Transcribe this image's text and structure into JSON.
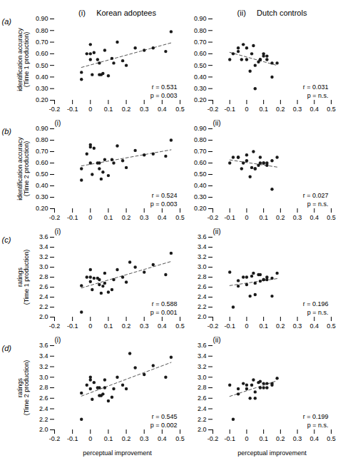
{
  "chart_data": [
    {
      "type": "scatter",
      "title": "(i)     Korean adoptees",
      "row_label": "(a)",
      "ylabel": "identification accuracy\n(Time 1 production)",
      "x": [
        -0.05,
        0.02,
        0.0,
        0.05,
        0.08,
        0.0,
        0.05,
        0.1,
        0.12,
        0.0,
        -0.02,
        0.04,
        0.06,
        0.15,
        0.2,
        0.25,
        0.3,
        0.35,
        0.42,
        0.45,
        -0.05,
        0.01,
        0.07,
        0.13,
        0.18
      ],
      "values": [
        0.44,
        0.61,
        0.6,
        0.42,
        0.63,
        0.55,
        0.52,
        0.41,
        0.56,
        0.68,
        0.6,
        0.55,
        0.42,
        0.7,
        0.5,
        0.65,
        0.63,
        0.65,
        0.62,
        0.79,
        0.38,
        0.42,
        0.43,
        0.52,
        0.54
      ],
      "color": "#1a1a1a",
      "marker": "circle",
      "trend_line": {
        "type": "regression",
        "color": "#555555",
        "line_style": "dashed"
      },
      "annotations": [
        "r = 0.531",
        "p = 0.003"
      ],
      "xlim": [
        -0.2,
        0.5
      ],
      "xticks": [
        -0.2,
        -0.1,
        0,
        0.1,
        0.2,
        0.3,
        0.4,
        0.5
      ],
      "ylim": [
        0.2,
        0.9
      ],
      "yticks": [
        {
          "value": 0.2,
          "label": "0.20"
        },
        {
          "value": 0.3,
          "label": "0.30"
        },
        {
          "value": 0.4,
          "label": "0.40"
        },
        {
          "value": 0.5,
          "label": "0.50"
        },
        {
          "value": 0.6,
          "label": "0.60"
        },
        {
          "value": 0.7,
          "label": "0.70"
        },
        {
          "value": 0.8,
          "label": "0.80"
        },
        {
          "value": 0.9,
          "label": "0.90"
        }
      ],
      "grid": false
    },
    {
      "type": "scatter",
      "title": "(ii)     Dutch controls",
      "x": [
        -0.1,
        -0.05,
        -0.02,
        0.0,
        0.03,
        0.05,
        0.08,
        0.1,
        0.12,
        0.15,
        0.0,
        -0.05,
        0.02,
        0.08,
        0.15,
        0.1,
        0.05,
        0.18,
        0.12,
        -0.08,
        0.07,
        0.04,
        -0.03
      ],
      "values": [
        0.55,
        0.65,
        0.68,
        0.55,
        0.6,
        0.5,
        0.55,
        0.6,
        0.58,
        0.52,
        0.65,
        0.62,
        0.45,
        0.55,
        0.4,
        0.58,
        0.3,
        0.52,
        0.55,
        0.6,
        0.53,
        0.67,
        0.55
      ],
      "color": "#1a1a1a",
      "marker": "circle",
      "trend_line": {
        "type": "regression",
        "color": "#555555",
        "line_style": "dashed"
      },
      "annotations": [
        "r = 0.031",
        "p = n.s."
      ],
      "xlim": [
        -0.2,
        0.5
      ],
      "xticks": [
        -0.2,
        -0.1,
        0,
        0.1,
        0.2,
        0.3,
        0.4,
        0.5
      ],
      "ylim": [
        0.2,
        0.9
      ],
      "yticks": [
        {
          "value": 0.2,
          "label": "0.20"
        },
        {
          "value": 0.3,
          "label": "0.30"
        },
        {
          "value": 0.4,
          "label": "0.40"
        },
        {
          "value": 0.5,
          "label": "0.50"
        },
        {
          "value": 0.6,
          "label": "0.60"
        },
        {
          "value": 0.7,
          "label": "0.70"
        },
        {
          "value": 0.8,
          "label": "0.80"
        },
        {
          "value": 0.9,
          "label": "0.90"
        }
      ],
      "grid": false
    },
    {
      "type": "scatter",
      "title": "(i)",
      "row_label": "(b)",
      "ylabel": "identification accuracy\n(Time 2 production)",
      "x": [
        -0.05,
        0.02,
        0.0,
        0.05,
        0.08,
        0.0,
        0.05,
        0.1,
        0.12,
        0.0,
        -0.02,
        0.04,
        0.06,
        0.15,
        0.2,
        0.25,
        0.3,
        0.35,
        0.42,
        0.45,
        -0.05,
        0.01,
        0.07,
        0.13,
        0.18
      ],
      "values": [
        0.55,
        0.73,
        0.74,
        0.55,
        0.63,
        0.6,
        0.6,
        0.49,
        0.63,
        0.76,
        0.68,
        0.6,
        0.46,
        0.75,
        0.56,
        0.71,
        0.67,
        0.68,
        0.66,
        0.8,
        0.45,
        0.5,
        0.52,
        0.6,
        0.62
      ],
      "color": "#1a1a1a",
      "marker": "circle",
      "trend_line": {
        "type": "regression",
        "color": "#555555",
        "line_style": "dashed"
      },
      "annotations": [
        "r = 0.524",
        "p = 0.003"
      ],
      "xlim": [
        -0.2,
        0.5
      ],
      "xticks": [
        -0.2,
        -0.1,
        0,
        0.1,
        0.2,
        0.3,
        0.4,
        0.5
      ],
      "ylim": [
        0.2,
        0.9
      ],
      "yticks": [
        {
          "value": 0.2,
          "label": "0.20"
        },
        {
          "value": 0.3,
          "label": "0.30"
        },
        {
          "value": 0.4,
          "label": "0.40"
        },
        {
          "value": 0.5,
          "label": "0.50"
        },
        {
          "value": 0.6,
          "label": "0.60"
        },
        {
          "value": 0.7,
          "label": "0.70"
        },
        {
          "value": 0.8,
          "label": "0.80"
        },
        {
          "value": 0.9,
          "label": "0.90"
        }
      ],
      "grid": false
    },
    {
      "type": "scatter",
      "title": "(ii)",
      "x": [
        -0.1,
        -0.05,
        -0.02,
        0.0,
        0.03,
        0.05,
        0.08,
        0.1,
        0.12,
        0.15,
        0.0,
        -0.05,
        0.02,
        0.08,
        0.15,
        0.1,
        0.05,
        0.18,
        0.12,
        -0.08,
        0.07,
        0.04,
        -0.03
      ],
      "values": [
        0.6,
        0.65,
        0.6,
        0.62,
        0.56,
        0.55,
        0.6,
        0.6,
        0.6,
        0.62,
        0.67,
        0.65,
        0.48,
        0.65,
        0.37,
        0.6,
        0.55,
        0.65,
        0.58,
        0.65,
        0.58,
        0.7,
        0.55
      ],
      "color": "#1a1a1a",
      "marker": "circle",
      "trend_line": {
        "type": "regression",
        "color": "#555555",
        "line_style": "dashed"
      },
      "annotations": [
        "r = 0.027",
        "p = n.s."
      ],
      "xlim": [
        -0.2,
        0.5
      ],
      "xticks": [
        -0.2,
        -0.1,
        0,
        0.1,
        0.2,
        0.3,
        0.4,
        0.5
      ],
      "ylim": [
        0.2,
        0.9
      ],
      "yticks": [
        {
          "value": 0.2,
          "label": "0.20"
        },
        {
          "value": 0.3,
          "label": "0.30"
        },
        {
          "value": 0.4,
          "label": "0.40"
        },
        {
          "value": 0.5,
          "label": "0.50"
        },
        {
          "value": 0.6,
          "label": "0.60"
        },
        {
          "value": 0.7,
          "label": "0.70"
        },
        {
          "value": 0.8,
          "label": "0.80"
        },
        {
          "value": 0.9,
          "label": "0.90"
        }
      ],
      "grid": false
    },
    {
      "type": "scatter",
      "title": "(i)",
      "row_label": "(c)",
      "ylabel": "ratings\n(Time 1 production)",
      "x": [
        -0.05,
        0.02,
        0.0,
        0.05,
        0.08,
        0.0,
        0.05,
        0.1,
        0.12,
        0.0,
        -0.02,
        0.04,
        0.06,
        0.15,
        0.2,
        0.25,
        0.3,
        0.35,
        0.42,
        0.45,
        -0.05,
        0.01,
        0.07,
        0.13,
        0.18,
        0.22,
        0.08
      ],
      "values": [
        2.63,
        2.78,
        2.8,
        2.65,
        2.88,
        2.71,
        2.75,
        2.5,
        2.55,
        2.95,
        2.8,
        2.78,
        2.48,
        2.95,
        2.7,
        3.0,
        2.9,
        3.05,
        2.85,
        3.28,
        2.1,
        2.55,
        2.62,
        2.75,
        2.8,
        3.1,
        2.68
      ],
      "color": "#1a1a1a",
      "marker": "circle",
      "trend_line": {
        "type": "regression",
        "color": "#555555",
        "line_style": "dashed"
      },
      "annotations": [
        "r = 0.588",
        "p = 0.001"
      ],
      "xlim": [
        -0.2,
        0.5
      ],
      "xticks": [
        -0.2,
        -0.1,
        0,
        0.1,
        0.2,
        0.3,
        0.4,
        0.5
      ],
      "ylim": [
        2.0,
        3.6
      ],
      "yticks": [
        {
          "value": 2.0,
          "label": "2.0"
        },
        2.2,
        2.4,
        2.6,
        2.8,
        {
          "value": 3.0,
          "label": "3.0"
        },
        3.2,
        3.4,
        3.6
      ],
      "grid": false
    },
    {
      "type": "scatter",
      "title": "(ii)",
      "x": [
        -0.1,
        -0.05,
        -0.02,
        0.0,
        0.03,
        0.05,
        0.08,
        0.1,
        0.12,
        0.15,
        0.0,
        -0.05,
        0.02,
        0.08,
        0.15,
        0.1,
        0.05,
        0.18,
        0.12,
        -0.08,
        0.07,
        0.04
      ],
      "values": [
        2.9,
        2.73,
        2.8,
        2.65,
        2.82,
        2.68,
        2.72,
        2.75,
        2.75,
        2.78,
        2.8,
        2.62,
        2.42,
        2.85,
        2.42,
        2.75,
        2.45,
        2.88,
        2.8,
        2.2,
        2.85,
        2.88
      ],
      "color": "#1a1a1a",
      "marker": "circle",
      "trend_line": {
        "type": "regression",
        "color": "#555555",
        "line_style": "dashed"
      },
      "annotations": [
        "r = 0.196",
        "p = n.s."
      ],
      "xlim": [
        -0.2,
        0.5
      ],
      "xticks": [
        -0.2,
        -0.1,
        0,
        0.1,
        0.2,
        0.3,
        0.4,
        0.5
      ],
      "ylim": [
        2.0,
        3.6
      ],
      "yticks": [
        {
          "value": 2.0,
          "label": "2.0"
        },
        2.2,
        2.4,
        2.6,
        2.8,
        {
          "value": 3.0,
          "label": "3.0"
        },
        3.2,
        3.4,
        3.6
      ],
      "grid": false
    },
    {
      "type": "scatter",
      "title": "(i)",
      "row_label": "(d)",
      "ylabel": "ratings\n(Time 2 production)",
      "xlabel": "perceptual improvement",
      "x": [
        -0.05,
        0.02,
        0.0,
        0.05,
        0.08,
        0.0,
        0.05,
        0.1,
        0.12,
        0.0,
        -0.02,
        0.04,
        0.06,
        0.15,
        0.2,
        0.25,
        0.3,
        0.35,
        0.42,
        0.45,
        -0.05,
        0.01,
        0.07,
        0.13,
        0.18,
        0.22,
        0.08
      ],
      "values": [
        2.7,
        2.9,
        2.95,
        2.65,
        2.95,
        2.78,
        2.8,
        2.55,
        2.62,
        3.0,
        2.85,
        2.8,
        2.65,
        3.0,
        2.78,
        3.18,
        3.05,
        3.22,
        3.0,
        3.38,
        2.2,
        2.58,
        2.68,
        2.78,
        2.85,
        3.45,
        2.8
      ],
      "color": "#1a1a1a",
      "marker": "circle",
      "trend_line": {
        "type": "regression",
        "color": "#555555",
        "line_style": "dashed"
      },
      "annotations": [
        "r = 0.545",
        "p = 0.002"
      ],
      "xlim": [
        -0.2,
        0.5
      ],
      "xticks": [
        -0.2,
        -0.1,
        0,
        0.1,
        0.2,
        0.3,
        0.4,
        0.5
      ],
      "ylim": [
        2.0,
        3.6
      ],
      "yticks": [
        {
          "value": 2.0,
          "label": "2.0"
        },
        2.2,
        2.4,
        2.6,
        2.8,
        {
          "value": 3.0,
          "label": "3.0"
        },
        3.2,
        3.4,
        3.6
      ],
      "grid": false
    },
    {
      "type": "scatter",
      "title": "(ii)",
      "xlabel": "perceptual improvement",
      "x": [
        -0.1,
        -0.05,
        -0.02,
        0.0,
        0.03,
        0.05,
        0.08,
        0.1,
        0.12,
        0.15,
        0.0,
        -0.05,
        0.02,
        0.08,
        0.15,
        0.1,
        0.05,
        0.18,
        0.12,
        -0.08,
        0.07,
        0.04
      ],
      "values": [
        2.85,
        2.78,
        2.88,
        2.78,
        2.85,
        2.72,
        2.8,
        2.8,
        2.8,
        2.85,
        2.85,
        2.68,
        2.6,
        2.92,
        2.88,
        2.88,
        2.6,
        2.98,
        2.88,
        2.2,
        2.9,
        2.95
      ],
      "color": "#1a1a1a",
      "marker": "circle",
      "trend_line": {
        "type": "regression",
        "color": "#555555",
        "line_style": "dashed"
      },
      "annotations": [
        "r = 0.199",
        "p = n.s."
      ],
      "xlim": [
        -0.2,
        0.5
      ],
      "xticks": [
        -0.2,
        -0.1,
        0,
        0.1,
        0.2,
        0.3,
        0.4,
        0.5
      ],
      "ylim": [
        2.0,
        3.6
      ],
      "yticks": [
        {
          "value": 2.0,
          "label": "2.0"
        },
        2.2,
        2.4,
        2.6,
        2.8,
        {
          "value": 3.0,
          "label": "3.0"
        },
        3.2,
        3.4,
        3.6
      ],
      "grid": false
    }
  ]
}
